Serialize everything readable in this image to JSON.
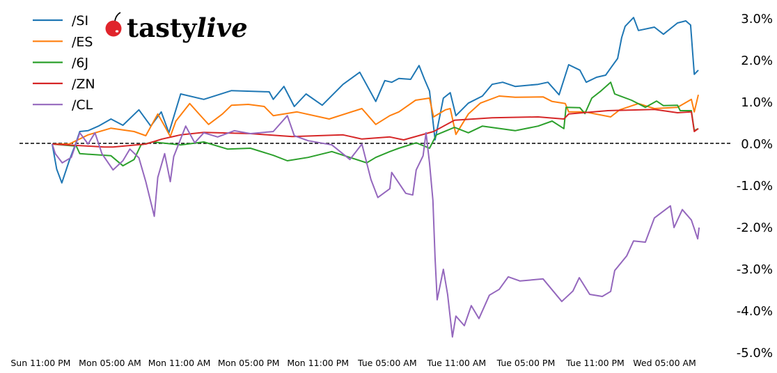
{
  "logo": {
    "part1": "tasty",
    "part2": "live",
    "cherry_color": "#e0242b"
  },
  "chart_data": {
    "type": "line",
    "title": "",
    "xlabel": "",
    "ylabel": "",
    "x_format": "Ddd HH:MM",
    "xlim": [
      "Sun 21:10",
      "Wed 10:45"
    ],
    "ylim": [
      -5.0,
      3.0
    ],
    "x_ticks": [
      "Sun 23:00",
      "Mon 05:00",
      "Mon 11:00",
      "Mon 17:00",
      "Mon 23:00",
      "Tue 05:00",
      "Tue 11:00",
      "Tue 17:00",
      "Tue 23:00",
      "Wed 05:00"
    ],
    "x_tick_labels": [
      "Sun 11:00 PM",
      "Mon 05:00 AM",
      "Mon 11:00 AM",
      "Mon 05:00 PM",
      "Mon 11:00 PM",
      "Tue 05:00 AM",
      "Tue 11:00 AM",
      "Tue 05:00 PM",
      "Tue 11:00 PM",
      "Wed 05:00 AM"
    ],
    "y_ticks": [
      3,
      2,
      1,
      0,
      -1,
      -2,
      -3,
      -4,
      -5
    ],
    "y_tick_labels": [
      "3.0%",
      "2.0%",
      "1.0%",
      "0.0%",
      "-1.0%",
      "-2.0%",
      "-3.0%",
      "-4.0%",
      "-5.0%"
    ],
    "y_axis_side": "right",
    "reference_line": {
      "y": 0,
      "style": "dashed",
      "color": "#000000"
    },
    "grid": false,
    "legend_position": "top-left",
    "series": [
      {
        "name": "/SI",
        "color": "#1f77b4",
        "points": [
          [
            "Mon 00:00",
            0
          ],
          [
            "Mon 00:23",
            -0.6
          ],
          [
            "Mon 00:50",
            -0.93
          ],
          [
            "Mon 01:28",
            -0.4
          ],
          [
            "Mon 02:01",
            0.0
          ],
          [
            "Mon 02:23",
            0.3
          ],
          [
            "Mon 03:06",
            0.32
          ],
          [
            "Mon 04:00",
            0.43
          ],
          [
            "Mon 05:05",
            0.6
          ],
          [
            "Mon 06:07",
            0.45
          ],
          [
            "Mon 07:30",
            0.82
          ],
          [
            "Mon 08:32",
            0.43
          ],
          [
            "Mon 09:26",
            0.77
          ],
          [
            "Mon 10:06",
            0.27
          ],
          [
            "Mon 11:07",
            1.2
          ],
          [
            "Mon 13:07",
            1.07
          ],
          [
            "Mon 15:31",
            1.28
          ],
          [
            "Mon 18:47",
            1.25
          ],
          [
            "Mon 19:08",
            1.07
          ],
          [
            "Mon 20:03",
            1.38
          ],
          [
            "Mon 20:57",
            0.9
          ],
          [
            "Mon 21:58",
            1.2
          ],
          [
            "Mon 23:22",
            0.93
          ],
          [
            "Tue 01:10",
            1.43
          ],
          [
            "Tue 02:37",
            1.72
          ],
          [
            "Tue 04:00",
            1.02
          ],
          [
            "Tue 04:47",
            1.52
          ],
          [
            "Tue 05:23",
            1.48
          ],
          [
            "Tue 06:00",
            1.57
          ],
          [
            "Tue 07:01",
            1.55
          ],
          [
            "Tue 07:45",
            1.88
          ],
          [
            "Tue 08:13",
            1.55
          ],
          [
            "Tue 08:39",
            1.27
          ],
          [
            "Tue 09:08",
            0.1
          ],
          [
            "Tue 09:51",
            1.1
          ],
          [
            "Tue 10:27",
            1.23
          ],
          [
            "Tue 10:56",
            0.68
          ],
          [
            "Tue 12:01",
            0.98
          ],
          [
            "Tue 13:14",
            1.15
          ],
          [
            "Tue 14:04",
            1.43
          ],
          [
            "Tue 14:59",
            1.48
          ],
          [
            "Tue 16:04",
            1.38
          ],
          [
            "Tue 18:03",
            1.43
          ],
          [
            "Tue 18:54",
            1.48
          ],
          [
            "Tue 19:52",
            1.18
          ],
          [
            "Tue 20:42",
            1.9
          ],
          [
            "Tue 21:40",
            1.77
          ],
          [
            "Tue 22:13",
            1.48
          ],
          [
            "Tue 23:07",
            1.6
          ],
          [
            "Tue 23:54",
            1.65
          ],
          [
            "Wed 00:20",
            1.82
          ],
          [
            "Wed 00:56",
            2.05
          ],
          [
            "Wed 01:17",
            2.55
          ],
          [
            "Wed 01:35",
            2.82
          ],
          [
            "Wed 02:19",
            3.03
          ],
          [
            "Wed 02:44",
            2.72
          ],
          [
            "Wed 04:07",
            2.8
          ],
          [
            "Wed 04:54",
            2.63
          ],
          [
            "Wed 06:07",
            2.9
          ],
          [
            "Wed 06:50",
            2.95
          ],
          [
            "Wed 07:15",
            2.85
          ],
          [
            "Wed 07:34",
            1.67
          ],
          [
            "Wed 07:55",
            1.77
          ]
        ]
      },
      {
        "name": "/ES",
        "color": "#ff7f0e",
        "points": [
          [
            "Mon 00:00",
            0
          ],
          [
            "Mon 01:28",
            0
          ],
          [
            "Mon 03:06",
            0.22
          ],
          [
            "Mon 05:05",
            0.38
          ],
          [
            "Mon 07:05",
            0.3
          ],
          [
            "Mon 08:06",
            0.2
          ],
          [
            "Mon 09:08",
            0.72
          ],
          [
            "Mon 09:44",
            0.43
          ],
          [
            "Mon 10:13",
            0.18
          ],
          [
            "Mon 10:42",
            0.55
          ],
          [
            "Mon 11:54",
            0.97
          ],
          [
            "Mon 12:56",
            0.65
          ],
          [
            "Mon 13:32",
            0.47
          ],
          [
            "Mon 14:44",
            0.72
          ],
          [
            "Mon 15:31",
            0.93
          ],
          [
            "Mon 16:58",
            0.95
          ],
          [
            "Mon 18:21",
            0.9
          ],
          [
            "Mon 19:08",
            0.68
          ],
          [
            "Mon 21:11",
            0.77
          ],
          [
            "Mon 23:58",
            0.6
          ],
          [
            "Tue 02:48",
            0.85
          ],
          [
            "Tue 04:00",
            0.47
          ],
          [
            "Tue 05:13",
            0.68
          ],
          [
            "Tue 06:00",
            0.77
          ],
          [
            "Tue 07:27",
            1.05
          ],
          [
            "Tue 08:39",
            1.1
          ],
          [
            "Tue 09:00",
            0.65
          ],
          [
            "Tue 10:02",
            0.82
          ],
          [
            "Tue 10:27",
            0.85
          ],
          [
            "Tue 10:56",
            0.23
          ],
          [
            "Tue 12:01",
            0.72
          ],
          [
            "Tue 13:03",
            0.98
          ],
          [
            "Tue 14:41",
            1.15
          ],
          [
            "Tue 16:04",
            1.12
          ],
          [
            "Tue 18:29",
            1.13
          ],
          [
            "Tue 19:16",
            1.02
          ],
          [
            "Tue 20:24",
            0.97
          ],
          [
            "Tue 20:42",
            0.77
          ],
          [
            "Tue 22:06",
            0.77
          ],
          [
            "Wed 00:20",
            0.65
          ],
          [
            "Wed 01:07",
            0.82
          ],
          [
            "Wed 02:44",
            0.97
          ],
          [
            "Wed 04:07",
            0.85
          ],
          [
            "Wed 06:07",
            0.88
          ],
          [
            "Wed 07:19",
            1.07
          ],
          [
            "Wed 07:34",
            0.77
          ],
          [
            "Wed 07:55",
            1.18
          ]
        ]
      },
      {
        "name": "/6J",
        "color": "#2ca02c",
        "points": [
          [
            "Mon 00:00",
            0
          ],
          [
            "Mon 02:05",
            -0.05
          ],
          [
            "Mon 02:23",
            -0.23
          ],
          [
            "Mon 05:05",
            -0.28
          ],
          [
            "Mon 06:07",
            -0.52
          ],
          [
            "Mon 07:05",
            -0.37
          ],
          [
            "Mon 07:41",
            -0.02
          ],
          [
            "Mon 08:43",
            0.05
          ],
          [
            "Mon 11:07",
            -0.02
          ],
          [
            "Mon 13:07",
            0.05
          ],
          [
            "Mon 15:10",
            -0.12
          ],
          [
            "Mon 17:09",
            -0.1
          ],
          [
            "Mon 19:08",
            -0.27
          ],
          [
            "Mon 20:21",
            -0.4
          ],
          [
            "Mon 22:09",
            -0.32
          ],
          [
            "Tue 00:12",
            -0.18
          ],
          [
            "Tue 03:13",
            -0.45
          ],
          [
            "Tue 04:00",
            -0.32
          ],
          [
            "Tue 05:13",
            -0.18
          ],
          [
            "Tue 06:00",
            -0.1
          ],
          [
            "Tue 07:30",
            0.03
          ],
          [
            "Tue 08:39",
            -0.1
          ],
          [
            "Tue 09:15",
            0.22
          ],
          [
            "Tue 10:49",
            0.4
          ],
          [
            "Tue 12:01",
            0.27
          ],
          [
            "Tue 13:14",
            0.43
          ],
          [
            "Tue 16:04",
            0.32
          ],
          [
            "Tue 18:03",
            0.43
          ],
          [
            "Tue 19:16",
            0.55
          ],
          [
            "Tue 20:17",
            0.37
          ],
          [
            "Tue 20:28",
            0.88
          ],
          [
            "Tue 21:40",
            0.87
          ],
          [
            "Tue 22:06",
            0.73
          ],
          [
            "Tue 22:42",
            1.1
          ],
          [
            "Tue 23:29",
            1.27
          ],
          [
            "Wed 00:20",
            1.48
          ],
          [
            "Wed 00:41",
            1.2
          ],
          [
            "Wed 02:08",
            1.05
          ],
          [
            "Wed 03:20",
            0.88
          ],
          [
            "Wed 04:18",
            1.03
          ],
          [
            "Wed 04:54",
            0.92
          ],
          [
            "Wed 06:07",
            0.93
          ],
          [
            "Wed 06:21",
            0.8
          ],
          [
            "Wed 07:19",
            0.8
          ],
          [
            "Wed 07:34",
            0.32
          ],
          [
            "Wed 07:55",
            0.37
          ]
        ]
      },
      {
        "name": "/ZN",
        "color": "#d62728",
        "points": [
          [
            "Mon 00:00",
            0
          ],
          [
            "Mon 04:29",
            -0.07
          ],
          [
            "Mon 05:16",
            -0.07
          ],
          [
            "Mon 08:06",
            0
          ],
          [
            "Mon 09:30",
            0.12
          ],
          [
            "Mon 11:07",
            0.22
          ],
          [
            "Mon 13:07",
            0.28
          ],
          [
            "Mon 17:09",
            0.25
          ],
          [
            "Mon 20:46",
            0.18
          ],
          [
            "Tue 01:10",
            0.22
          ],
          [
            "Tue 02:48",
            0.12
          ],
          [
            "Tue 05:13",
            0.17
          ],
          [
            "Tue 06:25",
            0.1
          ],
          [
            "Tue 09:00",
            0.3
          ],
          [
            "Tue 10:49",
            0.57
          ],
          [
            "Tue 14:04",
            0.63
          ],
          [
            "Tue 18:03",
            0.65
          ],
          [
            "Tue 20:17",
            0.6
          ],
          [
            "Tue 20:42",
            0.72
          ],
          [
            "Wed 00:05",
            0.8
          ],
          [
            "Wed 04:07",
            0.83
          ],
          [
            "Wed 06:07",
            0.75
          ],
          [
            "Wed 07:19",
            0.77
          ],
          [
            "Wed 07:34",
            0.3
          ],
          [
            "Wed 07:55",
            0.37
          ]
        ]
      },
      {
        "name": "/CL",
        "color": "#9467bd",
        "points": [
          [
            "Mon 00:00",
            0
          ],
          [
            "Mon 00:16",
            -0.23
          ],
          [
            "Mon 00:52",
            -0.45
          ],
          [
            "Mon 01:39",
            -0.32
          ],
          [
            "Mon 02:23",
            0.27
          ],
          [
            "Mon 03:06",
            0
          ],
          [
            "Mon 03:42",
            0.27
          ],
          [
            "Mon 04:18",
            -0.23
          ],
          [
            "Mon 05:16",
            -0.62
          ],
          [
            "Mon 06:07",
            -0.4
          ],
          [
            "Mon 06:43",
            -0.12
          ],
          [
            "Mon 07:30",
            -0.33
          ],
          [
            "Mon 08:06",
            -0.9
          ],
          [
            "Mon 08:50",
            -1.73
          ],
          [
            "Mon 09:08",
            -0.8
          ],
          [
            "Mon 09:44",
            -0.23
          ],
          [
            "Mon 10:13",
            -0.9
          ],
          [
            "Mon 10:31",
            -0.3
          ],
          [
            "Mon 11:33",
            0.43
          ],
          [
            "Mon 12:20",
            0.03
          ],
          [
            "Mon 13:07",
            0.27
          ],
          [
            "Mon 14:19",
            0.17
          ],
          [
            "Mon 15:46",
            0.32
          ],
          [
            "Mon 17:09",
            0.25
          ],
          [
            "Mon 19:08",
            0.3
          ],
          [
            "Mon 20:21",
            0.68
          ],
          [
            "Mon 20:57",
            0.2
          ],
          [
            "Mon 22:09",
            0.08
          ],
          [
            "Tue 00:12",
            -0.02
          ],
          [
            "Tue 01:46",
            -0.37
          ],
          [
            "Tue 02:48",
            0
          ],
          [
            "Tue 03:35",
            -0.85
          ],
          [
            "Tue 04:11",
            -1.28
          ],
          [
            "Tue 05:13",
            -1.07
          ],
          [
            "Tue 05:23",
            -0.68
          ],
          [
            "Tue 06:36",
            -1.18
          ],
          [
            "Tue 07:12",
            -1.22
          ],
          [
            "Tue 07:30",
            -0.62
          ],
          [
            "Tue 08:06",
            -0.28
          ],
          [
            "Tue 08:21",
            0.27
          ],
          [
            "Tue 08:39",
            -0.45
          ],
          [
            "Tue 08:57",
            -1.35
          ],
          [
            "Tue 09:08",
            -2.73
          ],
          [
            "Tue 09:19",
            -3.73
          ],
          [
            "Tue 09:51",
            -3.0
          ],
          [
            "Tue 10:13",
            -3.6
          ],
          [
            "Tue 10:38",
            -4.62
          ],
          [
            "Tue 10:56",
            -4.12
          ],
          [
            "Tue 11:40",
            -4.35
          ],
          [
            "Tue 12:16",
            -3.87
          ],
          [
            "Tue 12:56",
            -4.18
          ],
          [
            "Tue 13:50",
            -3.62
          ],
          [
            "Tue 14:41",
            -3.48
          ],
          [
            "Tue 15:28",
            -3.18
          ],
          [
            "Tue 16:29",
            -3.28
          ],
          [
            "Tue 18:29",
            -3.23
          ],
          [
            "Tue 20:06",
            -3.77
          ],
          [
            "Tue 21:04",
            -3.52
          ],
          [
            "Tue 21:37",
            -3.2
          ],
          [
            "Tue 22:31",
            -3.6
          ],
          [
            "Tue 23:36",
            -3.65
          ],
          [
            "Wed 00:20",
            -3.53
          ],
          [
            "Wed 00:41",
            -3.03
          ],
          [
            "Wed 01:43",
            -2.68
          ],
          [
            "Wed 02:19",
            -2.32
          ],
          [
            "Wed 03:20",
            -2.35
          ],
          [
            "Wed 04:07",
            -1.77
          ],
          [
            "Wed 05:30",
            -1.48
          ],
          [
            "Wed 05:49",
            -2.0
          ],
          [
            "Wed 06:32",
            -1.57
          ],
          [
            "Wed 07:19",
            -1.82
          ],
          [
            "Wed 07:52",
            -2.27
          ],
          [
            "Wed 07:59",
            -2.0
          ]
        ]
      }
    ]
  }
}
